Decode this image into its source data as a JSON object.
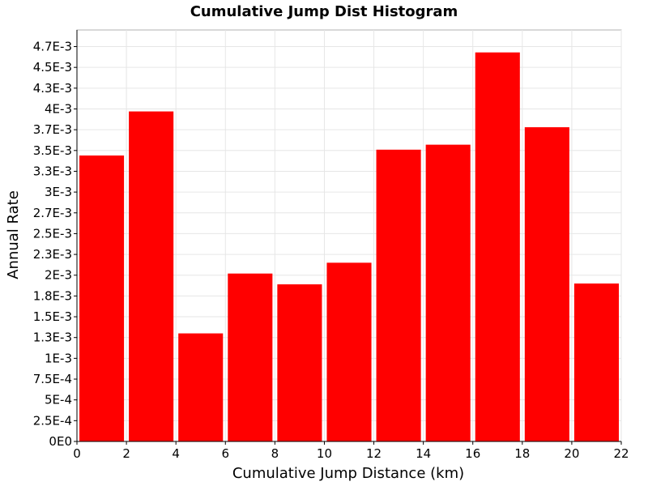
{
  "chart_data": {
    "type": "bar",
    "title": "Cumulative Jump Dist Histogram",
    "xlabel": "Cumulative Jump Distance (km)",
    "ylabel": "Annual Rate",
    "xlim": [
      0,
      22
    ],
    "ylim": [
      0,
      0.00495
    ],
    "bin_width": 2,
    "x": [
      1,
      3,
      5,
      7,
      9,
      11,
      13,
      15,
      17,
      19,
      21
    ],
    "values": [
      0.00344,
      0.00397,
      0.0013,
      0.00202,
      0.00189,
      0.00215,
      0.00351,
      0.00357,
      0.00468,
      0.00378,
      0.0019
    ],
    "bar_color": "#ff0000",
    "x_ticks": [
      {
        "value": 0,
        "label": "0"
      },
      {
        "value": 2,
        "label": "2"
      },
      {
        "value": 4,
        "label": "4"
      },
      {
        "value": 6,
        "label": "6"
      },
      {
        "value": 8,
        "label": "8"
      },
      {
        "value": 10,
        "label": "10"
      },
      {
        "value": 12,
        "label": "12"
      },
      {
        "value": 14,
        "label": "14"
      },
      {
        "value": 16,
        "label": "16"
      },
      {
        "value": 18,
        "label": "18"
      },
      {
        "value": 20,
        "label": "20"
      },
      {
        "value": 22,
        "label": "22"
      }
    ],
    "y_ticks": [
      {
        "value": 0,
        "label": "0E0"
      },
      {
        "value": 0.00025,
        "label": "2.5E-4"
      },
      {
        "value": 0.0005,
        "label": "5E-4"
      },
      {
        "value": 0.00075,
        "label": "7.5E-4"
      },
      {
        "value": 0.001,
        "label": "1E-3"
      },
      {
        "value": 0.00125,
        "label": "1.3E-3"
      },
      {
        "value": 0.0015,
        "label": "1.5E-3"
      },
      {
        "value": 0.00175,
        "label": "1.8E-3"
      },
      {
        "value": 0.002,
        "label": "2E-3"
      },
      {
        "value": 0.00225,
        "label": "2.3E-3"
      },
      {
        "value": 0.0025,
        "label": "2.5E-3"
      },
      {
        "value": 0.00275,
        "label": "2.7E-3"
      },
      {
        "value": 0.003,
        "label": "3E-3"
      },
      {
        "value": 0.00325,
        "label": "3.3E-3"
      },
      {
        "value": 0.0035,
        "label": "3.5E-3"
      },
      {
        "value": 0.00375,
        "label": "3.7E-3"
      },
      {
        "value": 0.004,
        "label": "4E-3"
      },
      {
        "value": 0.00425,
        "label": "4.3E-3"
      },
      {
        "value": 0.0045,
        "label": "4.5E-3"
      },
      {
        "value": 0.00475,
        "label": "4.7E-3"
      }
    ],
    "grid": true,
    "legend": "none"
  }
}
